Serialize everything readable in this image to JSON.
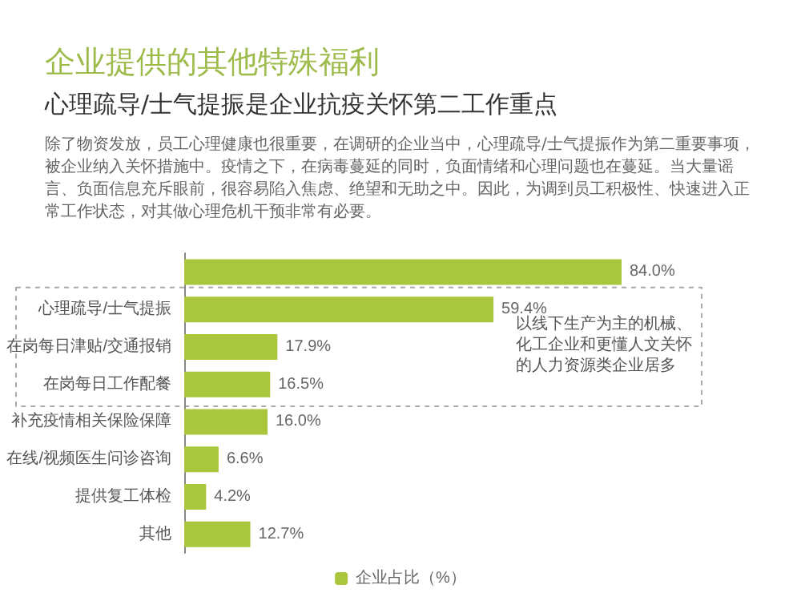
{
  "chart_data": {
    "type": "bar",
    "orientation": "horizontal",
    "title": "企业提供的其他特殊福利",
    "subtitle": "心理疏导/士气提振是企业抗疫关怀第二工作重点",
    "annotations": [
      "除了物资发放，员工心理健康也很重要，在调研的企业当中，心理疏导/士气提振作为第二重要事项，被企业纳入关怀措施中。疫情之下，在病毒蔓延的同时，负面情绪和心理问题也在蔓延。当大量谣言、负面信息充斥眼前，很容易陷入焦虑、绝望和无助之中。因此，为调到员工积极性、快速进入正常工作状态，对其做心理危机干预非常有必要。",
      "以线下生产为主的机械、化工企业和更懂人文关怀的人力资源类企业居多"
    ],
    "categories": [
      null,
      "心理疏导/士气提振",
      "在岗每日津贴/交通报销",
      "在岗每日工作配餐",
      "补充疫情相关保险保障",
      "在线/视频医生问诊咨询",
      "提供复工体检",
      "其他"
    ],
    "series": [
      {
        "name": "企业占比（%）",
        "color": "#a9c63c",
        "values": [
          84.0,
          59.4,
          17.9,
          16.5,
          16.0,
          6.6,
          4.2,
          12.7
        ],
        "value_labels": [
          "84.0%",
          "59.4%",
          "17.9%",
          "16.5%",
          "16.0%",
          "6.6%",
          "4.2%",
          "12.7%"
        ]
      }
    ],
    "legend": "bottom"
  }
}
